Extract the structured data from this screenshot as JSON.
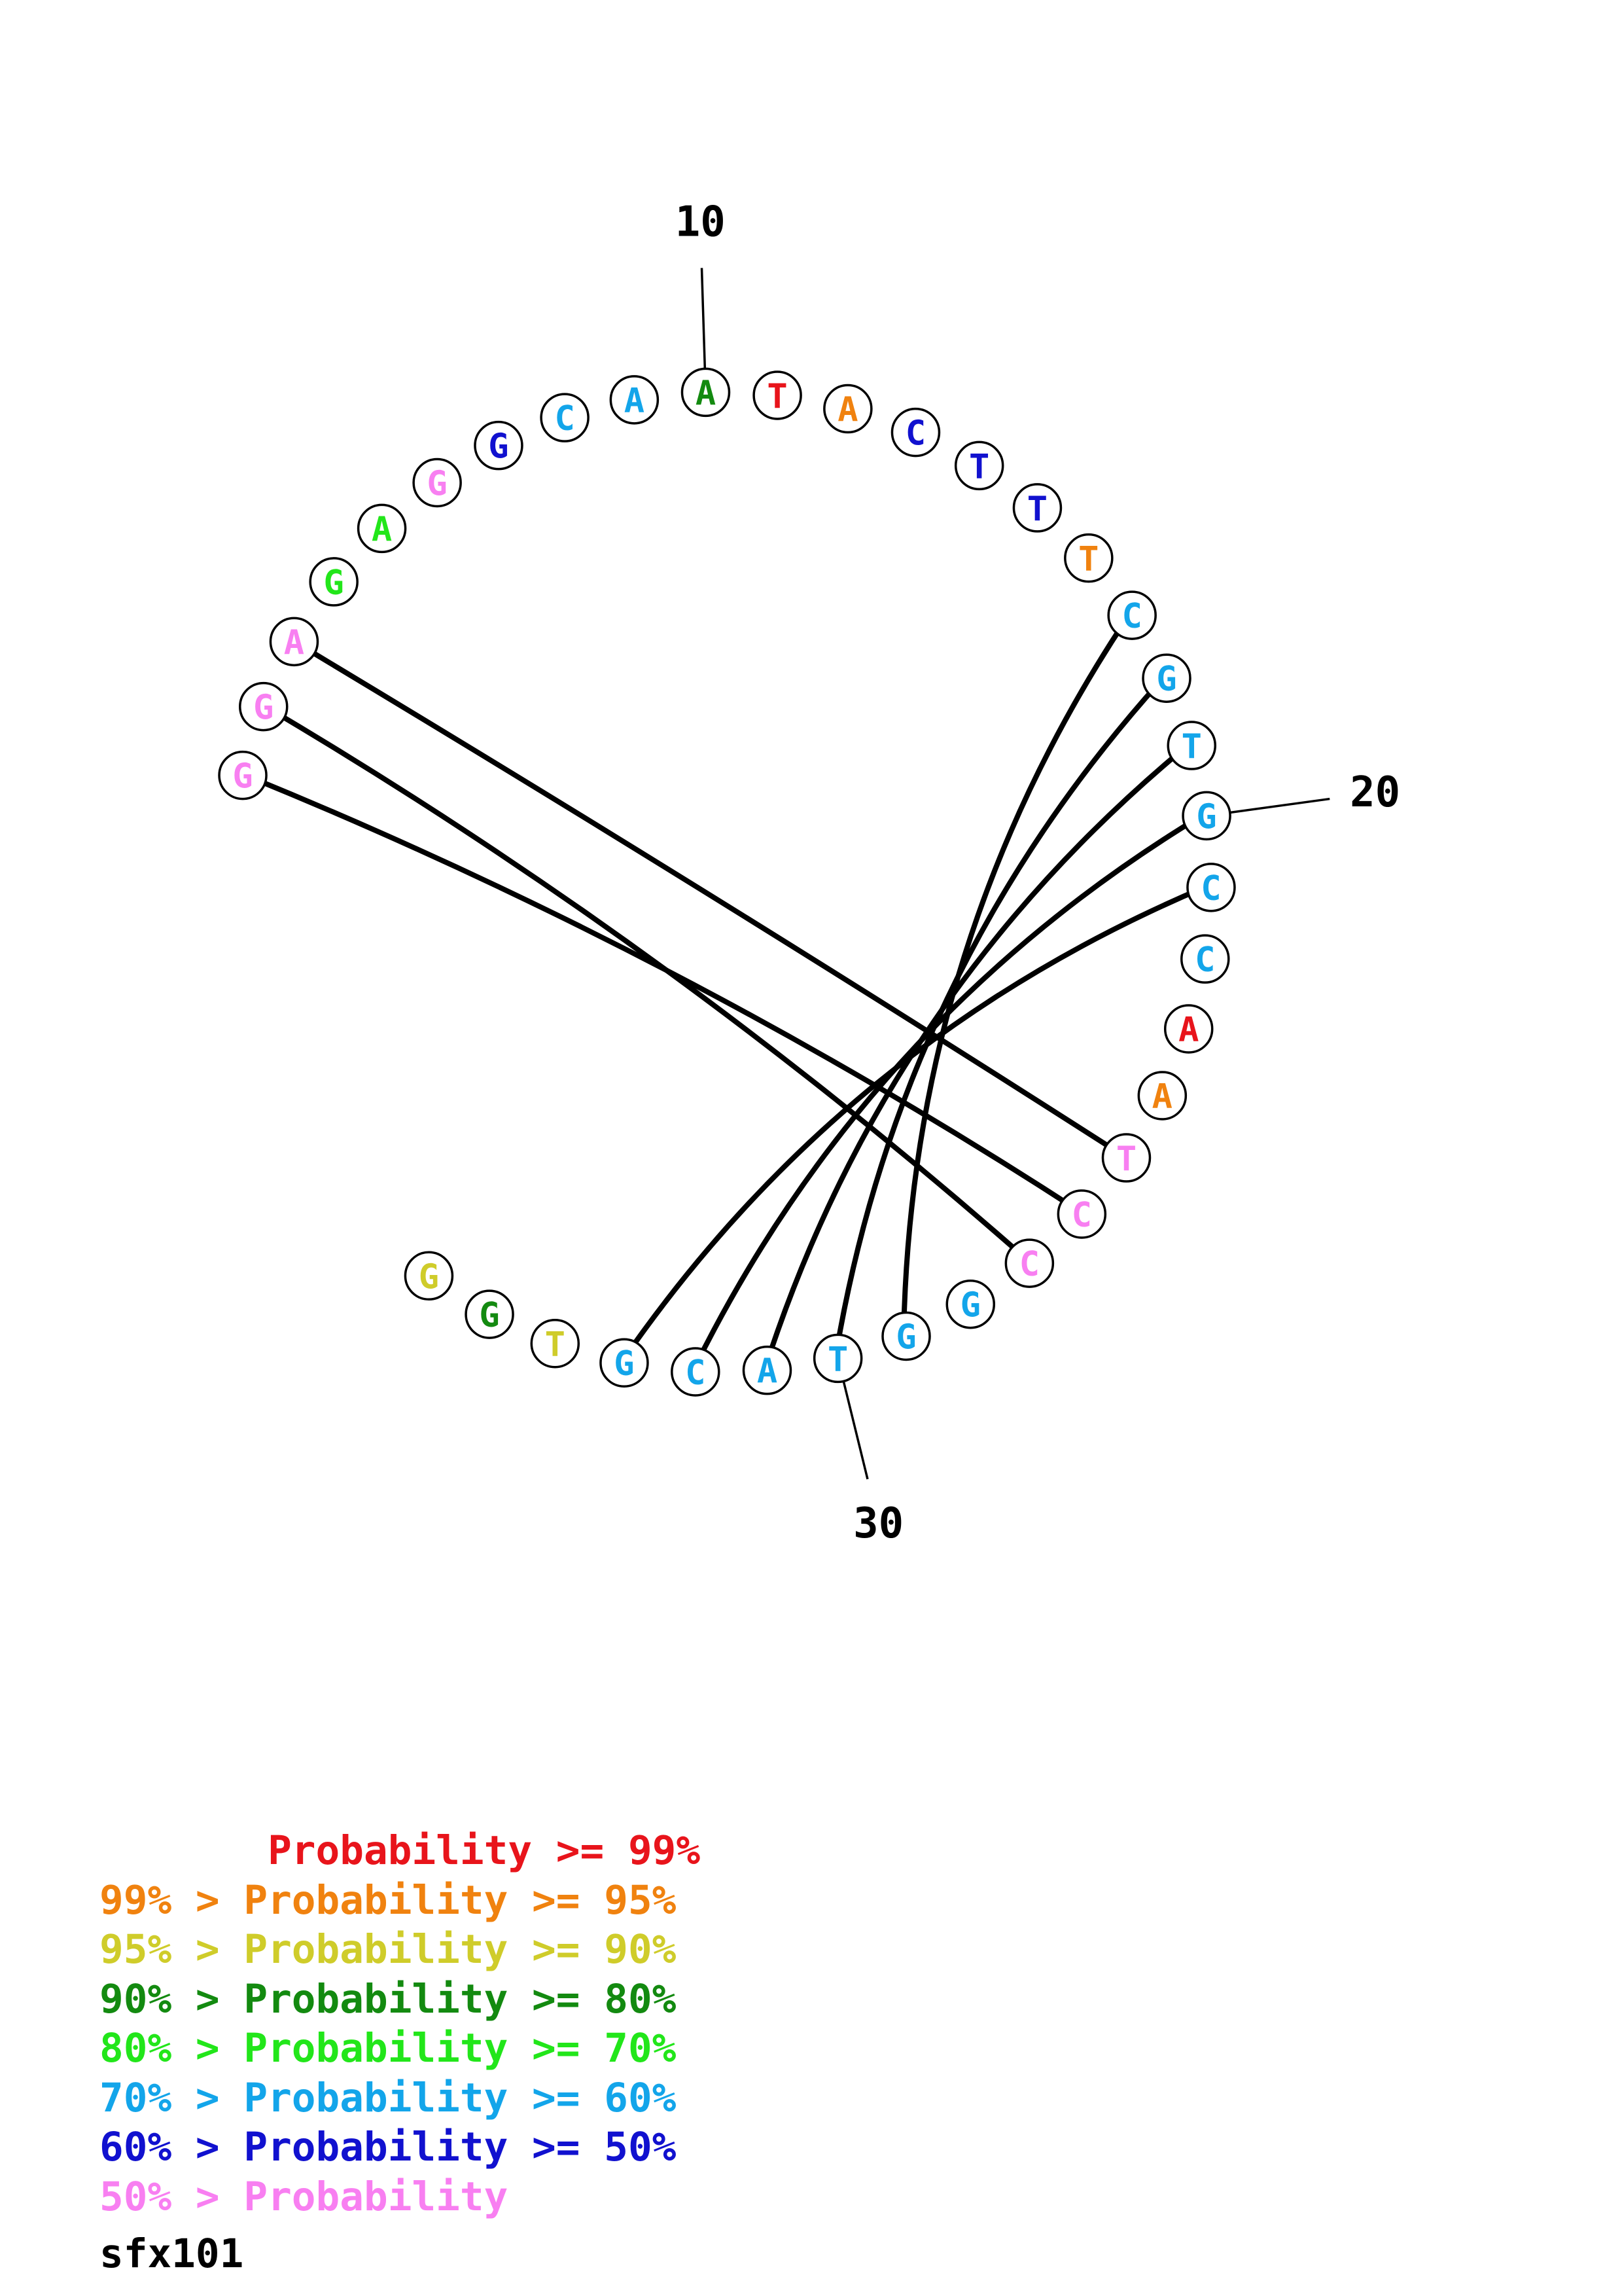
{
  "colors": {
    "p99": "#e8141b",
    "p95": "#f0820f",
    "p90": "#cfcc2a",
    "p80": "#138a10",
    "p70": "#22e61a",
    "p60": "#13a5ea",
    "p50": "#1111cf",
    "plow": "#f87ff1"
  },
  "sequence": [
    {
      "base": "G",
      "prob": "plow"
    },
    {
      "base": "G",
      "prob": "plow"
    },
    {
      "base": "A",
      "prob": "plow"
    },
    {
      "base": "G",
      "prob": "p70"
    },
    {
      "base": "A",
      "prob": "p70"
    },
    {
      "base": "G",
      "prob": "plow"
    },
    {
      "base": "G",
      "prob": "p50"
    },
    {
      "base": "C",
      "prob": "p60"
    },
    {
      "base": "A",
      "prob": "p60"
    },
    {
      "base": "A",
      "prob": "p80"
    },
    {
      "base": "T",
      "prob": "p99"
    },
    {
      "base": "A",
      "prob": "p95"
    },
    {
      "base": "C",
      "prob": "p50"
    },
    {
      "base": "T",
      "prob": "p50"
    },
    {
      "base": "T",
      "prob": "p50"
    },
    {
      "base": "T",
      "prob": "p95"
    },
    {
      "base": "C",
      "prob": "p60"
    },
    {
      "base": "G",
      "prob": "p60"
    },
    {
      "base": "T",
      "prob": "p60"
    },
    {
      "base": "G",
      "prob": "p60"
    },
    {
      "base": "C",
      "prob": "p60"
    },
    {
      "base": "C",
      "prob": "p60"
    },
    {
      "base": "A",
      "prob": "p99"
    },
    {
      "base": "A",
      "prob": "p95"
    },
    {
      "base": "T",
      "prob": "plow"
    },
    {
      "base": "C",
      "prob": "plow"
    },
    {
      "base": "C",
      "prob": "plow"
    },
    {
      "base": "G",
      "prob": "p60"
    },
    {
      "base": "G",
      "prob": "p60"
    },
    {
      "base": "T",
      "prob": "p60"
    },
    {
      "base": "A",
      "prob": "p60"
    },
    {
      "base": "C",
      "prob": "p60"
    },
    {
      "base": "G",
      "prob": "p60"
    },
    {
      "base": "T",
      "prob": "p90"
    },
    {
      "base": "G",
      "prob": "p80"
    },
    {
      "base": "G",
      "prob": "p90"
    }
  ],
  "pairs": [
    [
      1,
      26
    ],
    [
      2,
      27
    ],
    [
      3,
      25
    ],
    [
      17,
      29
    ],
    [
      18,
      30
    ],
    [
      19,
      31
    ],
    [
      20,
      32
    ],
    [
      21,
      33
    ]
  ],
  "ticks": [
    {
      "position": 10,
      "label": "10"
    },
    {
      "position": 20,
      "label": "20"
    },
    {
      "position": 30,
      "label": "30"
    }
  ],
  "legend": [
    {
      "prefix": "       ",
      "label": "Probability >= 99%",
      "color": "p99"
    },
    {
      "prefix": "99% > ",
      "label": "Probability >= 95%",
      "color": "p95"
    },
    {
      "prefix": "95% > ",
      "label": "Probability >= 90%",
      "color": "p90"
    },
    {
      "prefix": "90% > ",
      "label": "Probability >= 80%",
      "color": "p80"
    },
    {
      "prefix": "80% > ",
      "label": "Probability >= 70%",
      "color": "p70"
    },
    {
      "prefix": "70% > ",
      "label": "Probability >= 60%",
      "color": "p60"
    },
    {
      "prefix": "60% > ",
      "label": "Probability >= 50%",
      "color": "p50"
    },
    {
      "prefix": "50% > ",
      "label": "Probability",
      "color": "plow"
    }
  ],
  "sequence_name": "sfx101"
}
